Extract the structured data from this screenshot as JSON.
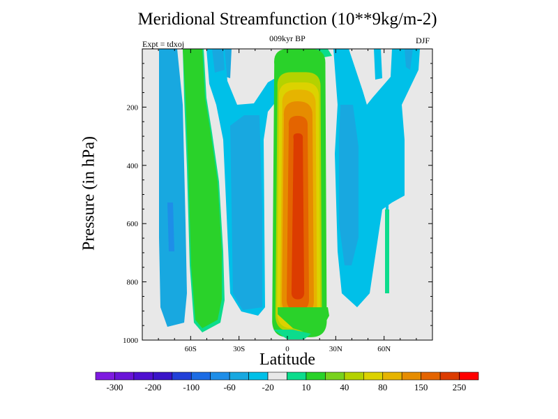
{
  "chart_data": {
    "type": "heatmap",
    "subtype": "filled-contour",
    "title": "Meridional Streamfunction (10**9kg/m-2)",
    "subtitle": "009kyr BP",
    "left_label": "Expt = tdxoj",
    "right_label": "DJF",
    "xlabel": "Latitude",
    "ylabel": "Pressure (in hPa)",
    "xlim": [
      -90,
      90
    ],
    "ylim": [
      1000,
      0
    ],
    "y_inverted": true,
    "x_ticks": [
      {
        "value": -60,
        "label": "60S"
      },
      {
        "value": -30,
        "label": "30S"
      },
      {
        "value": 0,
        "label": "0"
      },
      {
        "value": 30,
        "label": "30N"
      },
      {
        "value": 60,
        "label": "60N"
      }
    ],
    "y_ticks": [
      {
        "value": 200,
        "label": "200"
      },
      {
        "value": 400,
        "label": "400"
      },
      {
        "value": 600,
        "label": "600"
      },
      {
        "value": 800,
        "label": "800"
      },
      {
        "value": 1000,
        "label": "1000"
      }
    ],
    "colorbar": {
      "colors": [
        "#7e1ae0",
        "#6a14d8",
        "#4f10d0",
        "#3a14c8",
        "#2240d8",
        "#1c6ce4",
        "#1e8ee8",
        "#18a8e0",
        "#00c0e8",
        "#e8e8e8",
        "#0cdc8c",
        "#2ad22a",
        "#78d21e",
        "#b4d200",
        "#dcd200",
        "#e6b400",
        "#e68c00",
        "#e46400",
        "#dc3c00",
        "#ff0000"
      ],
      "labels": [
        {
          "index": 1,
          "text": "-300"
        },
        {
          "index": 3,
          "text": "-200"
        },
        {
          "index": 5,
          "text": "-100"
        },
        {
          "index": 7,
          "text": "-60"
        },
        {
          "index": 9,
          "text": "-20"
        },
        {
          "index": 11,
          "text": "10"
        },
        {
          "index": 13,
          "text": "40"
        },
        {
          "index": 15,
          "text": "80"
        },
        {
          "index": 17,
          "text": "150"
        },
        {
          "index": 19,
          "text": "250"
        }
      ]
    },
    "features": [
      {
        "name": "Northern-tropics Hadley cell",
        "color": "#2ad22a",
        "lat_min": -9,
        "lat_max": 24,
        "p_top": 0,
        "p_bottom": 990
      },
      {
        "name": "Northern-tropics Hadley cell",
        "color": "#b4d200",
        "lat_min": -7,
        "lat_max": 21,
        "p_top": 80,
        "p_bottom": 970
      },
      {
        "name": "Northern-tropics Hadley cell",
        "color": "#dcd200",
        "lat_min": -6,
        "lat_max": 20,
        "p_top": 115,
        "p_bottom": 960
      },
      {
        "name": "Northern-tropics Hadley cell",
        "color": "#e6b400",
        "lat_min": -4,
        "lat_max": 18,
        "p_top": 140,
        "p_bottom": 945
      },
      {
        "name": "Northern-tropics Hadley cell",
        "color": "#e68c00",
        "lat_min": -3,
        "lat_max": 16,
        "p_top": 180,
        "p_bottom": 920
      },
      {
        "name": "Northern-tropics Hadley cell",
        "color": "#e46400",
        "lat_min": 0,
        "lat_max": 13,
        "p_top": 230,
        "p_bottom": 900
      },
      {
        "name": "Northern-tropics Hadley cell",
        "color": "#dc3c00",
        "lat_min": 3,
        "lat_max": 10,
        "p_top": 290,
        "p_bottom": 860
      }
    ],
    "grid": false,
    "legend": "colorbar-bottom"
  }
}
